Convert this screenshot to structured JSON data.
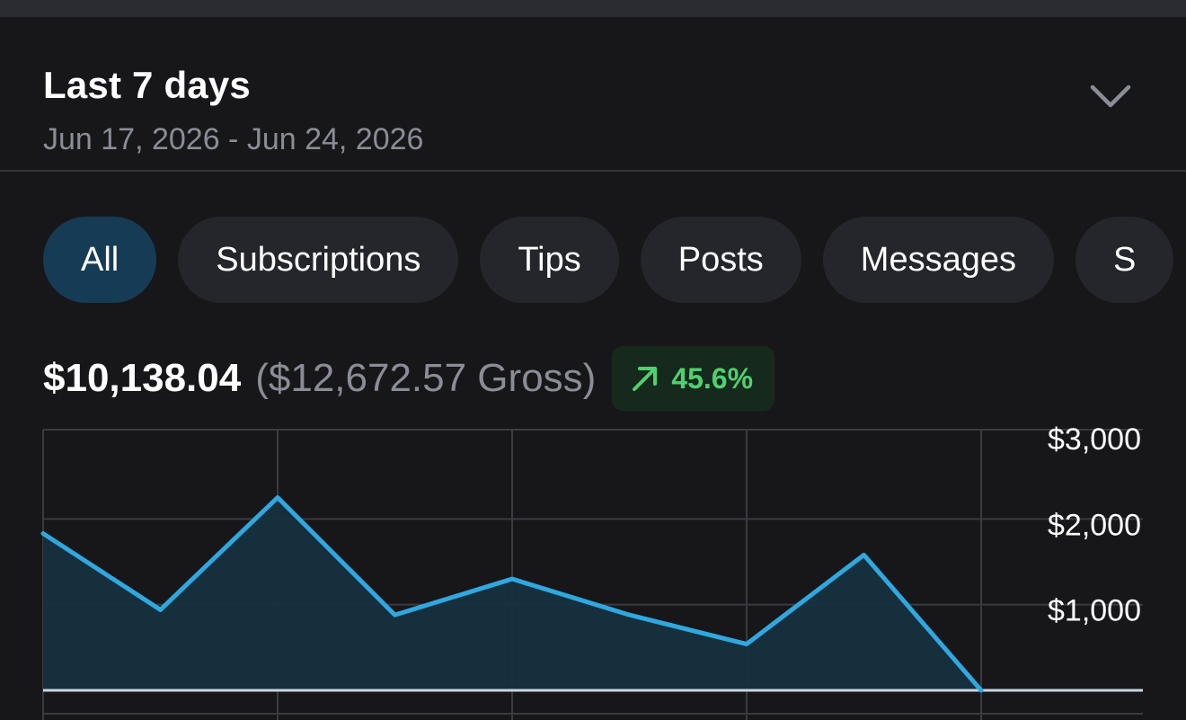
{
  "range": {
    "title": "Last 7 days",
    "dates": "Jun 17, 2026 - Jun 24, 2026",
    "toggle_icon": "chevron-down-icon"
  },
  "tabs": [
    {
      "label": "All",
      "active": true
    },
    {
      "label": "Subscriptions",
      "active": false
    },
    {
      "label": "Tips",
      "active": false
    },
    {
      "label": "Posts",
      "active": false
    },
    {
      "label": "Messages",
      "active": false
    },
    {
      "label": "S",
      "active": false
    }
  ],
  "summary": {
    "net": "$10,138.04",
    "gross": "($12,672.57 Gross)",
    "change": "45.6%",
    "change_icon": "trend-up-arrow-icon"
  },
  "colors": {
    "background": "#17171a",
    "accent_line": "#2fa8e0",
    "area_fill": "#16303f",
    "active_tab": "#163c55",
    "positive": "#4fd16f",
    "muted_text": "#8a8d96"
  },
  "chart_data": {
    "type": "area",
    "y_ticks": [
      {
        "value": 3000,
        "label": "$3,000"
      },
      {
        "value": 2000,
        "label": "$2,000"
      },
      {
        "value": 1000,
        "label": "$1,000"
      }
    ],
    "ylim": [
      0,
      3000
    ],
    "x_divisions": 4,
    "grid": true,
    "points": [
      {
        "x": 0.0,
        "y": 1830
      },
      {
        "x": 0.5,
        "y": 940
      },
      {
        "x": 1.0,
        "y": 2250
      },
      {
        "x": 1.5,
        "y": 880
      },
      {
        "x": 2.0,
        "y": 1300
      },
      {
        "x": 2.5,
        "y": 880
      },
      {
        "x": 3.0,
        "y": 540
      },
      {
        "x": 3.5,
        "y": 1580
      },
      {
        "x": 4.0,
        "y": 0
      }
    ]
  }
}
